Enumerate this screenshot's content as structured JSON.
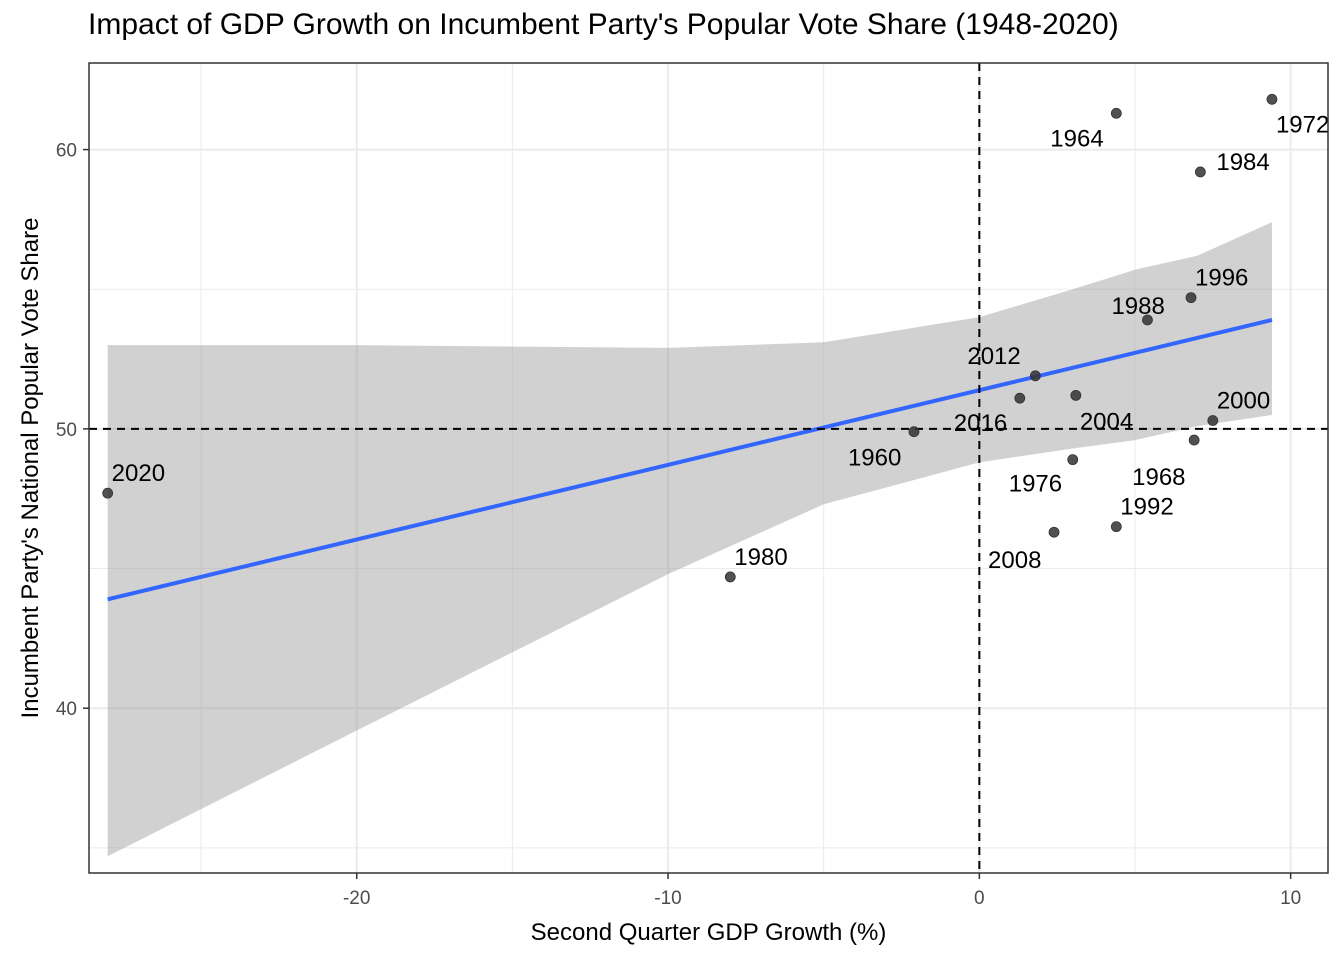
{
  "chart_data": {
    "type": "scatter",
    "title": "Impact of GDP Growth on Incumbent Party's Popular Vote Share (1948-2020)",
    "xlabel": "Second Quarter GDP Growth (%)",
    "ylabel": "Incumbent Party's National Popular Vote Share",
    "xlim": [
      -28.6,
      11.2
    ],
    "ylim": [
      34.1,
      63.1
    ],
    "x_ticks": [
      -20,
      -10,
      0,
      10
    ],
    "y_ticks": [
      40,
      50,
      60
    ],
    "x_tick_labels": [
      "-20",
      "-10",
      "0",
      "10"
    ],
    "y_tick_labels": [
      "40",
      "50",
      "60"
    ],
    "grid": true,
    "reference_lines": {
      "x": 0,
      "y": 50,
      "style": "dashed"
    },
    "points": [
      {
        "year": "1960",
        "x": -2.1,
        "y": 49.9
      },
      {
        "year": "1964",
        "x": 4.4,
        "y": 61.3
      },
      {
        "year": "1968",
        "x": 6.9,
        "y": 49.6
      },
      {
        "year": "1972",
        "x": 9.4,
        "y": 61.8
      },
      {
        "year": "1976",
        "x": 3.0,
        "y": 48.9
      },
      {
        "year": "1980",
        "x": -8.0,
        "y": 44.7
      },
      {
        "year": "1984",
        "x": 7.1,
        "y": 59.2
      },
      {
        "year": "1988",
        "x": 5.4,
        "y": 53.9
      },
      {
        "year": "1992",
        "x": 4.4,
        "y": 46.5
      },
      {
        "year": "1996",
        "x": 6.8,
        "y": 54.7
      },
      {
        "year": "2000",
        "x": 7.5,
        "y": 50.3
      },
      {
        "year": "2004",
        "x": 3.1,
        "y": 51.2
      },
      {
        "year": "2008",
        "x": 2.4,
        "y": 46.3
      },
      {
        "year": "2012",
        "x": 1.8,
        "y": 51.9
      },
      {
        "year": "2016",
        "x": 1.3,
        "y": 51.1
      },
      {
        "year": "2020",
        "x": -28.0,
        "y": 47.7
      }
    ],
    "fit": {
      "method": "linear",
      "x_range": [
        -28.0,
        9.4
      ],
      "line": [
        [
          -28.0,
          43.9
        ],
        [
          9.4,
          53.9
        ]
      ],
      "confidence_band": {
        "x": [
          -28.0,
          -20,
          -10,
          -5,
          0,
          3,
          5,
          7,
          9.4
        ],
        "lower": [
          34.7,
          39.2,
          44.8,
          47.3,
          48.8,
          49.3,
          49.6,
          50.1,
          50.5
        ],
        "upper": [
          53.0,
          53.0,
          52.9,
          53.1,
          54.0,
          55.0,
          55.7,
          56.2,
          57.4
        ]
      }
    },
    "colors": {
      "fit_line": "#3366FF",
      "band": "#999999",
      "point": "#333333",
      "grid": "#EBEBEB",
      "reference_line": "#000000"
    }
  }
}
